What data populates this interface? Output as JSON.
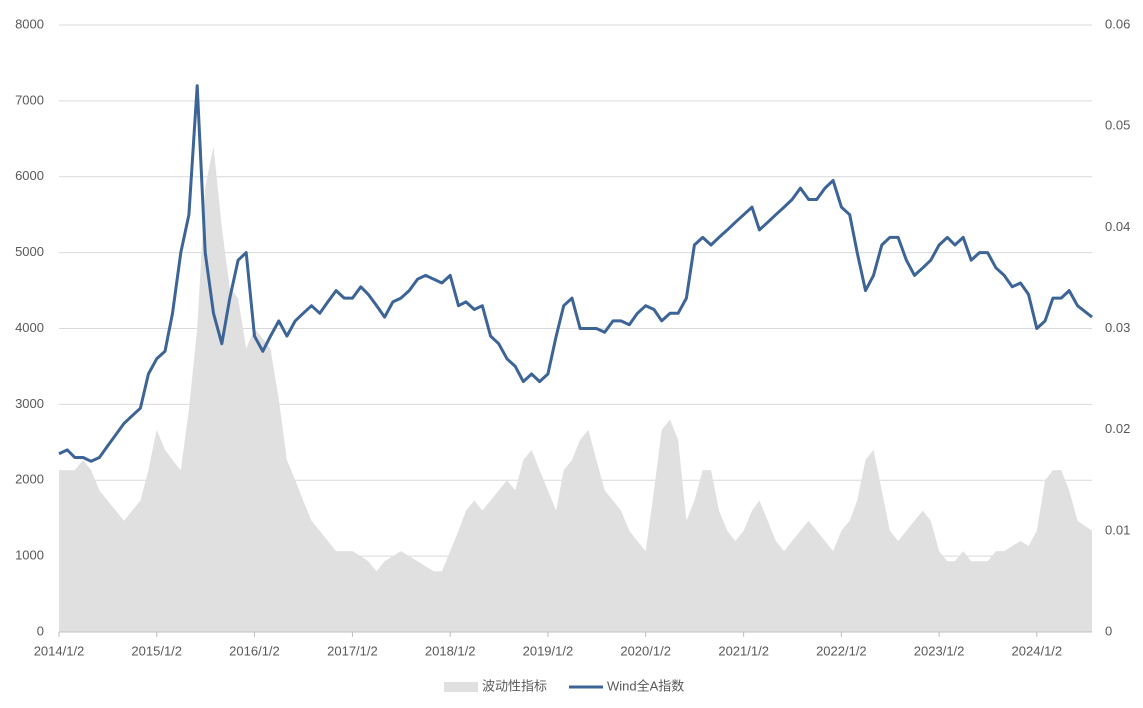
{
  "chart_data": {
    "type": "line",
    "x": [
      "2014/1/2",
      "2014/2/2",
      "2014/3/2",
      "2014/4/2",
      "2014/5/2",
      "2014/6/2",
      "2014/7/2",
      "2014/8/2",
      "2014/9/2",
      "2014/10/2",
      "2014/11/2",
      "2014/12/2",
      "2015/1/2",
      "2015/2/2",
      "2015/3/2",
      "2015/4/2",
      "2015/5/2",
      "2015/6/2",
      "2015/7/2",
      "2015/8/2",
      "2015/9/2",
      "2015/10/2",
      "2015/11/2",
      "2015/12/2",
      "2016/1/2",
      "2016/2/2",
      "2016/3/2",
      "2016/4/2",
      "2016/5/2",
      "2016/6/2",
      "2016/7/2",
      "2016/8/2",
      "2016/9/2",
      "2016/10/2",
      "2016/11/2",
      "2016/12/2",
      "2017/1/2",
      "2017/2/2",
      "2017/3/2",
      "2017/4/2",
      "2017/5/2",
      "2017/6/2",
      "2017/7/2",
      "2017/8/2",
      "2017/9/2",
      "2017/10/2",
      "2017/11/2",
      "2017/12/2",
      "2018/1/2",
      "2018/2/2",
      "2018/3/2",
      "2018/4/2",
      "2018/5/2",
      "2018/6/2",
      "2018/7/2",
      "2018/8/2",
      "2018/9/2",
      "2018/10/2",
      "2018/11/2",
      "2018/12/2",
      "2019/1/2",
      "2019/2/2",
      "2019/3/2",
      "2019/4/2",
      "2019/5/2",
      "2019/6/2",
      "2019/7/2",
      "2019/8/2",
      "2019/9/2",
      "2019/10/2",
      "2019/11/2",
      "2019/12/2",
      "2020/1/2",
      "2020/2/2",
      "2020/3/2",
      "2020/4/2",
      "2020/5/2",
      "2020/6/2",
      "2020/7/2",
      "2020/8/2",
      "2020/9/2",
      "2020/10/2",
      "2020/11/2",
      "2020/12/2",
      "2021/1/2",
      "2021/2/2",
      "2021/3/2",
      "2021/4/2",
      "2021/5/2",
      "2021/6/2",
      "2021/7/2",
      "2021/8/2",
      "2021/9/2",
      "2021/10/2",
      "2021/11/2",
      "2021/12/2",
      "2022/1/2",
      "2022/2/2",
      "2022/3/2",
      "2022/4/2",
      "2022/5/2",
      "2022/6/2",
      "2022/7/2",
      "2022/8/2",
      "2022/9/2",
      "2022/10/2",
      "2022/11/2",
      "2022/12/2",
      "2023/1/2",
      "2023/2/2",
      "2023/3/2",
      "2023/4/2",
      "2023/5/2",
      "2023/6/2",
      "2023/7/2",
      "2023/8/2",
      "2023/9/2",
      "2023/10/2",
      "2023/11/2",
      "2023/12/2",
      "2024/1/2",
      "2024/2/2",
      "2024/3/2",
      "2024/4/2",
      "2024/5/2",
      "2024/6/2",
      "2024/7/26"
    ],
    "series": [
      {
        "name": "波动性指标",
        "color": "#e0e0e0",
        "kind": "area",
        "axis": "y2",
        "values": [
          0.016,
          0.016,
          0.016,
          0.017,
          0.016,
          0.014,
          0.013,
          0.012,
          0.011,
          0.012,
          0.013,
          0.016,
          0.02,
          0.018,
          0.017,
          0.016,
          0.022,
          0.03,
          0.044,
          0.048,
          0.04,
          0.034,
          0.033,
          0.028,
          0.03,
          0.029,
          0.028,
          0.023,
          0.017,
          0.015,
          0.013,
          0.011,
          0.01,
          0.009,
          0.008,
          0.008,
          0.008,
          0.0075,
          0.007,
          0.006,
          0.007,
          0.0075,
          0.008,
          0.0075,
          0.007,
          0.0065,
          0.006,
          0.006,
          0.008,
          0.01,
          0.012,
          0.013,
          0.012,
          0.013,
          0.014,
          0.015,
          0.014,
          0.017,
          0.018,
          0.016,
          0.014,
          0.012,
          0.016,
          0.017,
          0.019,
          0.02,
          0.017,
          0.014,
          0.013,
          0.012,
          0.01,
          0.009,
          0.008,
          0.014,
          0.02,
          0.021,
          0.019,
          0.011,
          0.013,
          0.016,
          0.016,
          0.012,
          0.01,
          0.009,
          0.01,
          0.012,
          0.013,
          0.011,
          0.009,
          0.008,
          0.009,
          0.01,
          0.011,
          0.01,
          0.009,
          0.008,
          0.01,
          0.011,
          0.013,
          0.017,
          0.018,
          0.014,
          0.01,
          0.009,
          0.01,
          0.011,
          0.012,
          0.011,
          0.008,
          0.007,
          0.007,
          0.008,
          0.007,
          0.007,
          0.007,
          0.008,
          0.008,
          0.0085,
          0.009,
          0.0085,
          0.01,
          0.015,
          0.016,
          0.016,
          0.014,
          0.011,
          0.01
        ]
      },
      {
        "name": "Wind全A指数",
        "color": "#3c6496",
        "kind": "line",
        "values": [
          2350,
          2400,
          2300,
          2300,
          2250,
          2300,
          2450,
          2600,
          2750,
          2850,
          2950,
          3400,
          3600,
          3700,
          4200,
          5000,
          5500,
          7200,
          5000,
          4200,
          3800,
          4400,
          4900,
          5000,
          3900,
          3700,
          3900,
          4100,
          3900,
          4100,
          4200,
          4300,
          4200,
          4350,
          4500,
          4400,
          4400,
          4550,
          4450,
          4300,
          4150,
          4350,
          4400,
          4500,
          4650,
          4700,
          4650,
          4600,
          4700,
          4300,
          4350,
          4250,
          4300,
          3900,
          3800,
          3600,
          3500,
          3300,
          3400,
          3300,
          3400,
          3900,
          4300,
          4400,
          4000,
          4000,
          4000,
          3950,
          4100,
          4100,
          4050,
          4200,
          4300,
          4250,
          4100,
          4200,
          4200,
          4400,
          5100,
          5200,
          5100,
          5200,
          5300,
          5400,
          5500,
          5600,
          5300,
          5400,
          5500,
          5600,
          5700,
          5850,
          5700,
          5700,
          5850,
          5950,
          5600,
          5500,
          5000,
          4500,
          4700,
          5100,
          5200,
          5200,
          4900,
          4700,
          4800,
          4900,
          5100,
          5200,
          5100,
          5200,
          4900,
          5000,
          5000,
          4800,
          4700,
          4550,
          4600,
          4450,
          4000,
          4100,
          4400,
          4400,
          4500,
          4300,
          4150
        ]
      }
    ],
    "xlim": [
      "2014/1/2",
      "2024/7/26"
    ],
    "xticks": [
      "2014/1/2",
      "2015/1/2",
      "2016/1/2",
      "2017/1/2",
      "2018/1/2",
      "2019/1/2",
      "2020/1/2",
      "2021/1/2",
      "2022/1/2",
      "2023/1/2",
      "2024/1/2"
    ],
    "ylim": [
      0,
      8000
    ],
    "yticks": [
      0,
      1000,
      2000,
      3000,
      4000,
      5000,
      6000,
      7000,
      8000
    ],
    "y2lim": [
      0,
      0.06
    ],
    "y2ticks": [
      0,
      0.01,
      0.02,
      0.03,
      0.04,
      0.05,
      0.06
    ],
    "grid": true,
    "legend": "bottom"
  }
}
